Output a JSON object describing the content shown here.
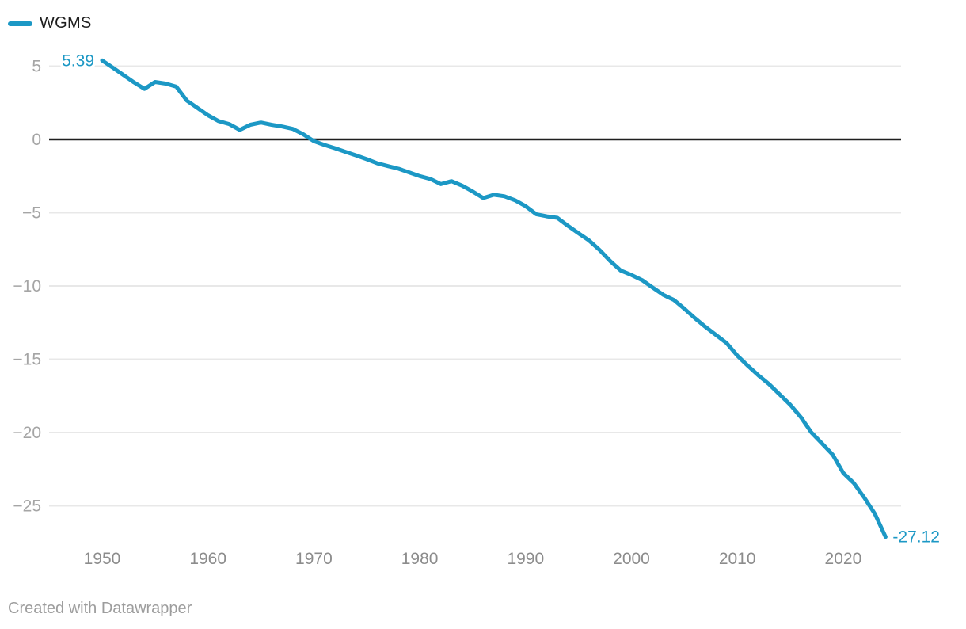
{
  "legend": {
    "series": [
      {
        "label": "WGMS",
        "color": "#1c98c5"
      }
    ]
  },
  "footer": {
    "text": "Created with Datawrapper"
  },
  "chart_data": {
    "type": "line",
    "title": "",
    "xlabel": "",
    "ylabel": "",
    "grid": "horizontal",
    "grid_color": "#e8e8e8",
    "zero_line_color": "#1f1f1f",
    "background_color": "#ffffff",
    "legend_position": "top-left",
    "xlim": [
      1945,
      2029
    ],
    "ylim": [
      -28.5,
      6.5
    ],
    "point_labels": {
      "first": "5.39",
      "last": "-27.12"
    },
    "x_axis": {
      "ticks": [
        {
          "value": 1950,
          "label": "1950"
        },
        {
          "value": 1960,
          "label": "1960"
        },
        {
          "value": 1970,
          "label": "1970"
        },
        {
          "value": 1980,
          "label": "1980"
        },
        {
          "value": 1990,
          "label": "1990"
        },
        {
          "value": 2000,
          "label": "2000"
        },
        {
          "value": 2010,
          "label": "2010"
        },
        {
          "value": 2020,
          "label": "2020"
        }
      ]
    },
    "y_axis": {
      "ticks": [
        {
          "value": 5,
          "label": "5"
        },
        {
          "value": 0,
          "label": "0"
        },
        {
          "value": -5,
          "label": "−5"
        },
        {
          "value": -10,
          "label": "−10"
        },
        {
          "value": -15,
          "label": "−15"
        },
        {
          "value": -20,
          "label": "−20"
        },
        {
          "value": -25,
          "label": "−25"
        }
      ],
      "zero_line": true
    },
    "series": [
      {
        "name": "WGMS",
        "color": "#1c98c5",
        "years": [
          1950,
          1951,
          1952,
          1953,
          1954,
          1955,
          1956,
          1957,
          1958,
          1959,
          1960,
          1961,
          1962,
          1963,
          1964,
          1965,
          1966,
          1967,
          1968,
          1969,
          1970,
          1971,
          1972,
          1973,
          1974,
          1975,
          1976,
          1977,
          1978,
          1979,
          1980,
          1981,
          1982,
          1983,
          1984,
          1985,
          1986,
          1987,
          1988,
          1989,
          1990,
          1991,
          1992,
          1993,
          1994,
          1995,
          1996,
          1997,
          1998,
          1999,
          2000,
          2001,
          2002,
          2003,
          2004,
          2005,
          2006,
          2007,
          2008,
          2009,
          2010,
          2011,
          2012,
          2013,
          2014,
          2015,
          2016,
          2017,
          2018,
          2019,
          2020,
          2021,
          2022,
          2023,
          2024
        ],
        "values": [
          5.39,
          4.9,
          4.4,
          3.9,
          3.45,
          3.92,
          3.81,
          3.6,
          2.65,
          2.15,
          1.65,
          1.25,
          1.05,
          0.65,
          1.0,
          1.15,
          1.0,
          0.88,
          0.72,
          0.35,
          -0.12,
          -0.38,
          -0.6,
          -0.85,
          -1.1,
          -1.35,
          -1.63,
          -1.82,
          -2.0,
          -2.25,
          -2.5,
          -2.7,
          -3.05,
          -2.85,
          -3.15,
          -3.55,
          -4.0,
          -3.78,
          -3.88,
          -4.15,
          -4.55,
          -5.1,
          -5.25,
          -5.35,
          -5.9,
          -6.4,
          -6.9,
          -7.55,
          -8.3,
          -8.95,
          -9.25,
          -9.6,
          -10.1,
          -10.6,
          -10.95,
          -11.55,
          -12.2,
          -12.8,
          -13.35,
          -13.9,
          -14.75,
          -15.45,
          -16.1,
          -16.7,
          -17.4,
          -18.1,
          -18.95,
          -20.0,
          -20.75,
          -21.5,
          -22.75,
          -23.45,
          -24.45,
          -25.55,
          -27.12
        ]
      }
    ]
  }
}
